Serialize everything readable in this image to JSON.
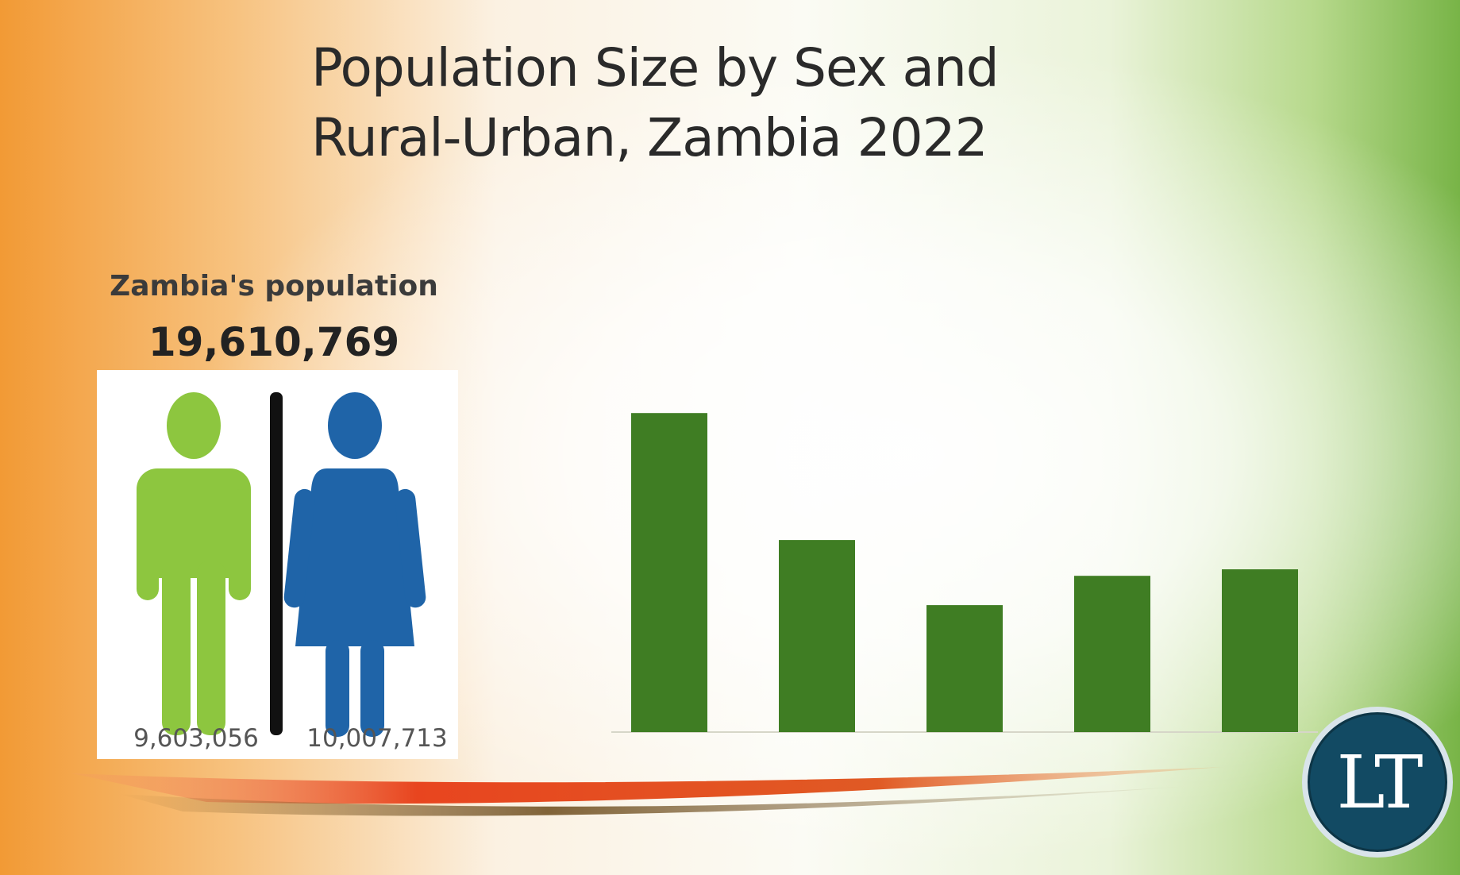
{
  "title_line1": "Population Size by Sex and",
  "title_line2": "Rural-Urban, Zambia 2022",
  "infographic": {
    "label": "Zambia's population",
    "total": "19,610,769",
    "male_value": "9,603,056",
    "female_value": "10,007,713",
    "male_color": "#8dc63f",
    "female_color": "#1f64a8"
  },
  "logo": {
    "text": "LT"
  },
  "chart_data": {
    "type": "bar",
    "categories": [
      "",
      "",
      "",
      "",
      ""
    ],
    "values": [
      19.6,
      11.8,
      7.8,
      9.6,
      10.0
    ],
    "data_labels": [
      "",
      "",
      "",
      "",
      ""
    ],
    "bar_color": "#3f7d23",
    "ylim": [
      0,
      20
    ],
    "grid": false,
    "legend": "none"
  }
}
